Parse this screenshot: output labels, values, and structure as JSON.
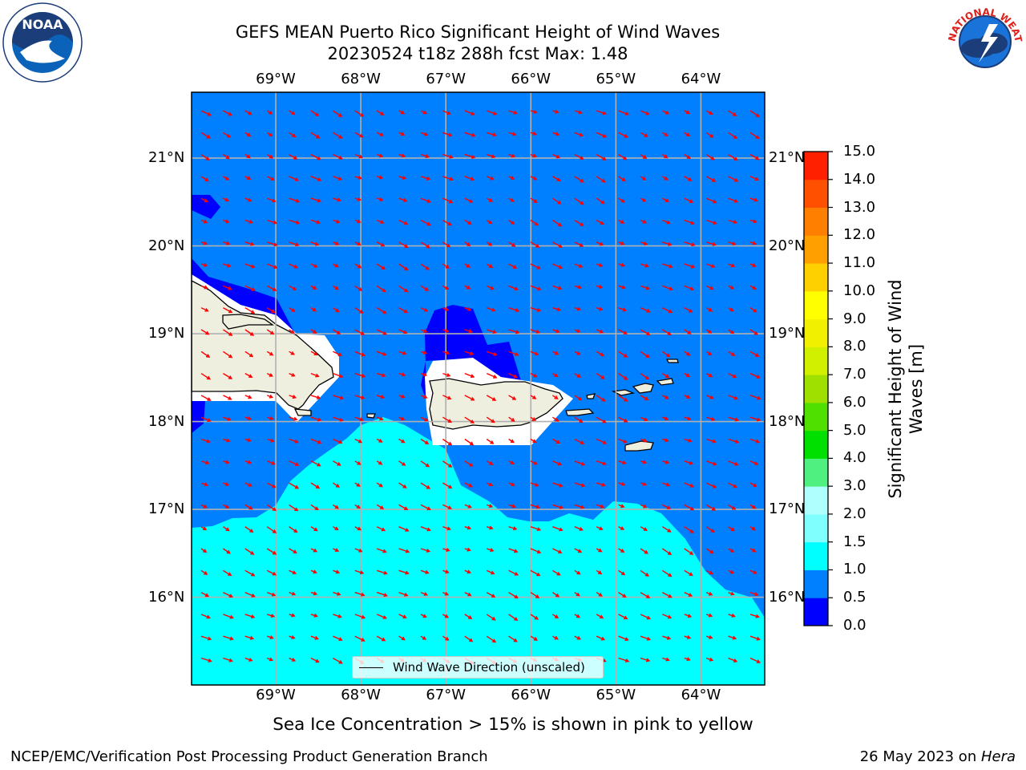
{
  "header": {
    "title_line1": "GEFS MEAN Puerto Rico Significant Height of Wind Waves",
    "title_line2": "20230524 t18z 288h fcst   Max: 1.48"
  },
  "logos": {
    "left": "NOAA",
    "left_ring": "NATIONAL OCEANIC AND ATMOSPHERIC ADMINISTRATION",
    "left_ring_bottom": "U.S. DEPARTMENT OF COMMERCE",
    "right": "NATIONAL WEATHER SERVICE"
  },
  "map": {
    "lon_labels": [
      "69°W",
      "68°W",
      "67°W",
      "66°W",
      "65°W",
      "64°W"
    ],
    "lat_labels": [
      "21°N",
      "20°N",
      "19°N",
      "18°N",
      "17°N",
      "16°N"
    ],
    "extent": {
      "lon": [
        -69.99,
        -63.25
      ],
      "lat": [
        15.0,
        21.75
      ]
    },
    "grid": true,
    "ocean_color": "#0080ff",
    "low_wave_color": "#0000ff",
    "high_wave_color": "#00ffff",
    "land_color": "#efefe0",
    "arrow_color": "#ff0000",
    "legend_label": "Wind Wave Direction (unscaled)"
  },
  "colorbar": {
    "label": "Significant Height of Wind Waves [m]",
    "ticks": [
      "15.0",
      "14.0",
      "13.0",
      "12.0",
      "11.0",
      "10.0",
      "9.0",
      "8.0",
      "7.0",
      "6.0",
      "5.0",
      "4.0",
      "3.0",
      "2.0",
      "1.5",
      "1.0",
      "0.5",
      "0.0"
    ],
    "colors": [
      "#0000ff",
      "#0080ff",
      "#00ffff",
      "#40ffff",
      "#80ffff",
      "#b0ffff",
      "#50f080",
      "#00e000",
      "#50e000",
      "#a0e000",
      "#d0f000",
      "#f0f000",
      "#ffff00",
      "#ffd000",
      "#ffa000",
      "#ff8000",
      "#ff5000",
      "#ff2000",
      "#ff0000"
    ]
  },
  "subnote": "Sea Ice Concentration > 15% is shown in pink to yellow",
  "footer": {
    "left": "NCEP/EMC/Verification Post Processing Product Generation Branch",
    "right_date": "26 May 2023 on ",
    "right_host": "Hera"
  }
}
